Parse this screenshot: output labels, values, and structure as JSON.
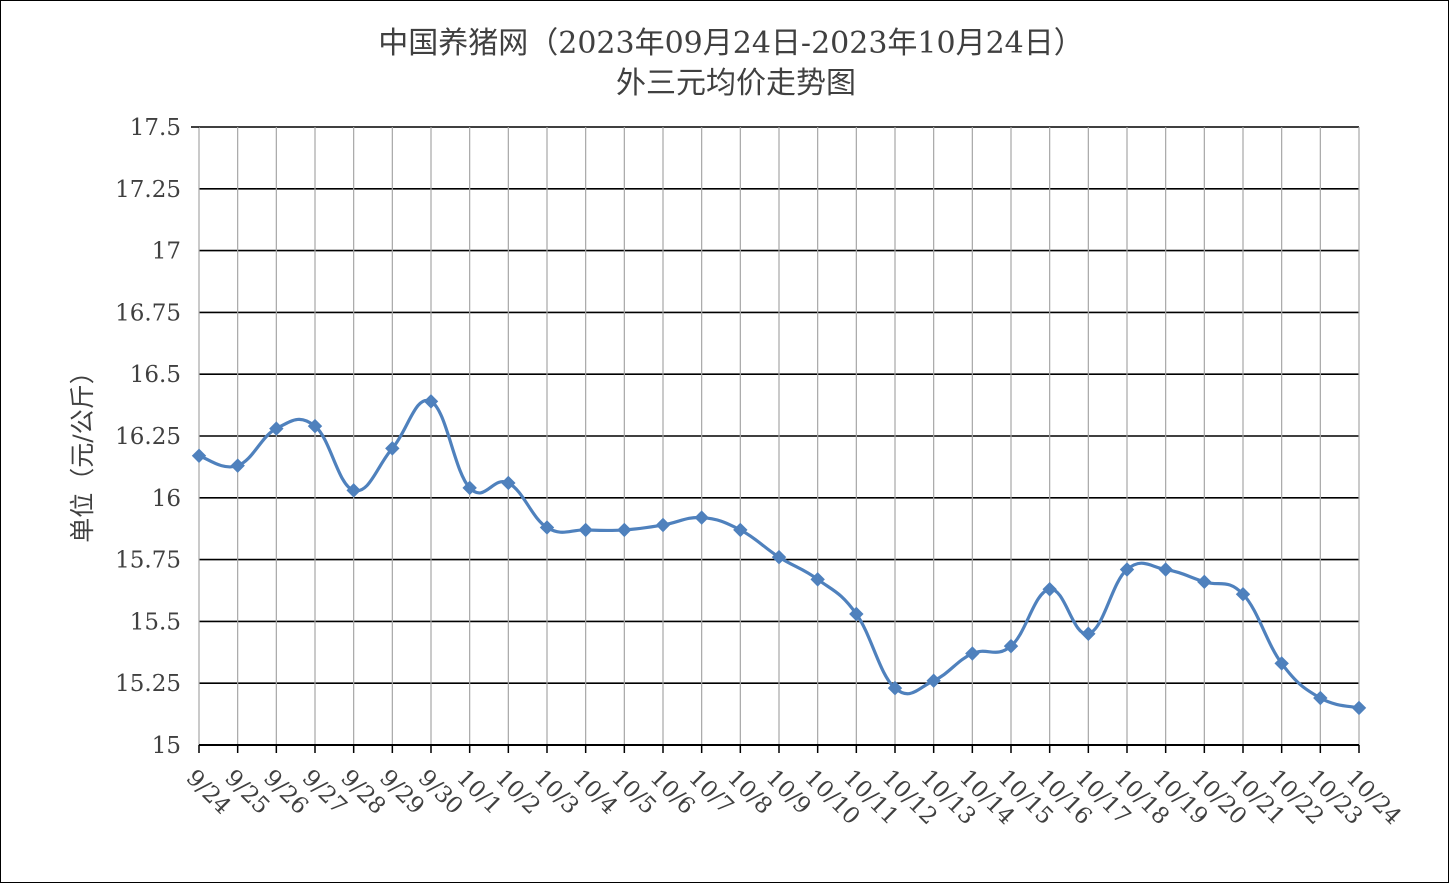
{
  "chart_data": {
    "type": "line",
    "title": "中国养猪网（2023年09月24日-2023年10月24日）",
    "subtitle": "外三元均价走势图",
    "xlabel": "",
    "ylabel": "单位（元/公斤）",
    "ylim": [
      15,
      17.5
    ],
    "y_ticks": [
      "15",
      "15.25",
      "15.5",
      "15.75",
      "16",
      "16.25",
      "16.5",
      "16.75",
      "17",
      "17.25",
      "17.5"
    ],
    "grid": true,
    "smooth": true,
    "marker": "diamond",
    "line_color": "#4f81bd",
    "categories": [
      "9/24",
      "9/25",
      "9/26",
      "9/27",
      "9/28",
      "9/29",
      "9/30",
      "10/1",
      "10/2",
      "10/3",
      "10/4",
      "10/5",
      "10/6",
      "10/7",
      "10/8",
      "10/9",
      "10/10",
      "10/11",
      "10/12",
      "10/13",
      "10/14",
      "10/15",
      "10/16",
      "10/17",
      "10/18",
      "10/19",
      "10/20",
      "10/21",
      "10/22",
      "10/23",
      "10/24"
    ],
    "values": [
      16.17,
      16.13,
      16.28,
      16.29,
      16.03,
      16.2,
      16.39,
      16.04,
      16.06,
      15.88,
      15.87,
      15.87,
      15.89,
      15.92,
      15.87,
      15.76,
      15.67,
      15.53,
      15.23,
      15.26,
      15.37,
      15.4,
      15.63,
      15.45,
      15.71,
      15.71,
      15.66,
      15.61,
      15.33,
      15.19,
      15.15
    ]
  }
}
